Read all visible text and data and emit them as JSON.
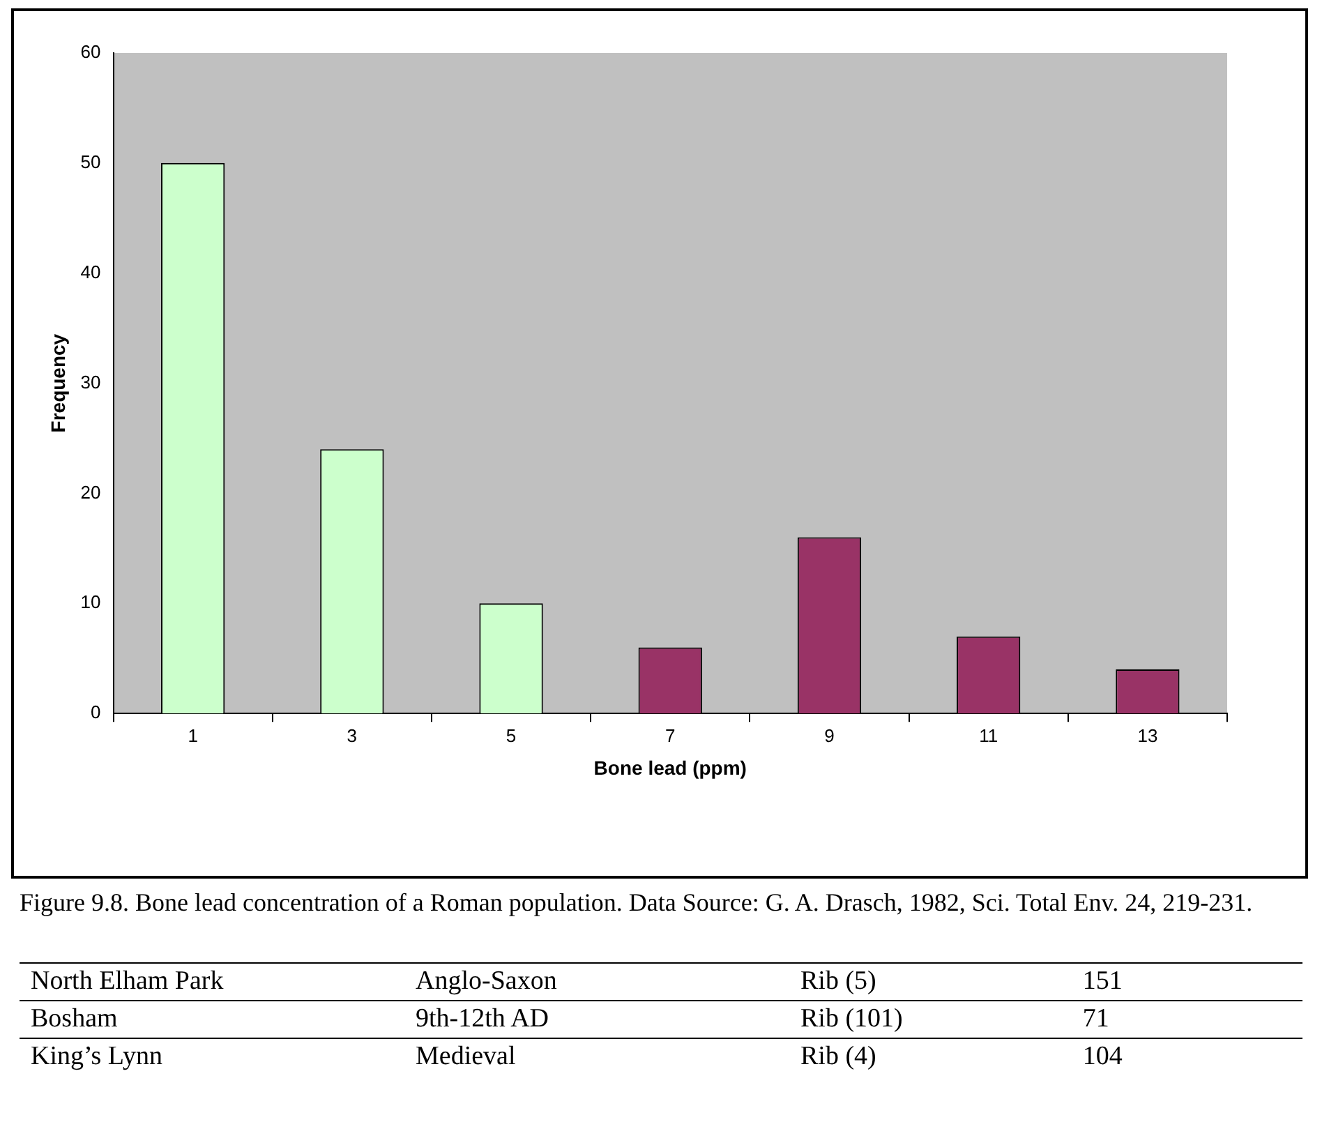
{
  "chart_data": {
    "type": "bar",
    "xlabel": "Bone lead (ppm)",
    "ylabel": "Frequency",
    "categories": [
      "1",
      "3",
      "5",
      "7",
      "9",
      "11",
      "13"
    ],
    "values": [
      50,
      24,
      10,
      6,
      16,
      7,
      4
    ],
    "colors": [
      "#ccffcc",
      "#ccffcc",
      "#ccffcc",
      "#993366",
      "#993366",
      "#993366",
      "#993366"
    ],
    "ylim": [
      0,
      60
    ],
    "yticks": [
      0,
      10,
      20,
      30,
      40,
      50,
      60
    ],
    "grid": false,
    "legend": false,
    "annotations": [
      "Figure 9.8. Bone lead concentration of a Roman population. Data Source: G. A. Drasch, 1982, Sci. Total Env. 24, 219-231.",
      "North Elham Park",
      "Anglo-Saxon",
      "Rib (5)",
      "151",
      "Bosham",
      "9th-12th AD",
      "Rib (101)",
      "71",
      "King’s Lynn",
      "Medieval",
      "Rib (4)",
      "104"
    ]
  }
}
